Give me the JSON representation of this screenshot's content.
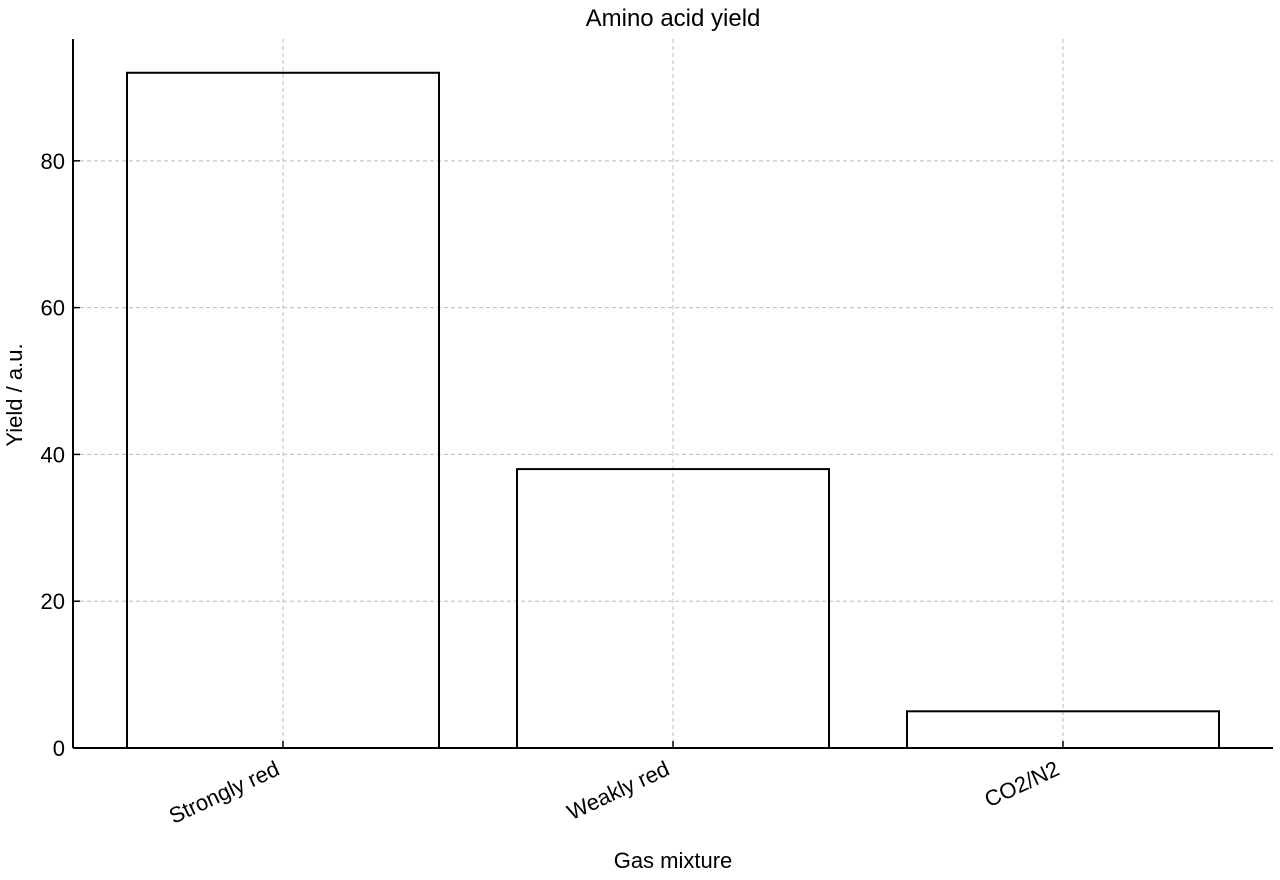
{
  "chart_data": {
    "type": "bar",
    "title": "Amino acid yield",
    "xlabel": "Gas mixture",
    "ylabel": "Yield / a.u.",
    "categories": [
      "Strongly red",
      "Weakly red",
      "CO2/N2"
    ],
    "values": [
      92,
      38,
      5
    ],
    "ylim": [
      0,
      96.6
    ],
    "yticks": [
      0,
      20,
      40,
      60,
      80
    ],
    "grid": true,
    "bar_fill": "none",
    "bar_edge_color": "#000000",
    "grid_color": "#bdbdbd"
  }
}
